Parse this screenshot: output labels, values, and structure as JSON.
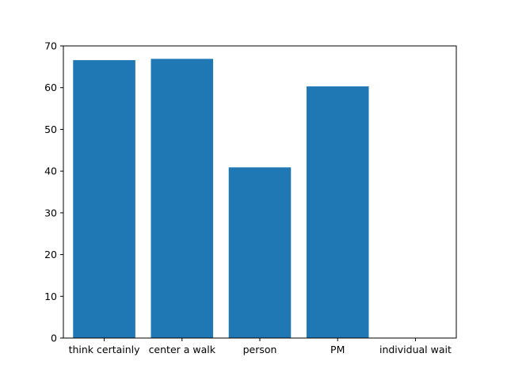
{
  "chart_data": {
    "type": "bar",
    "title": "",
    "xlabel": "",
    "ylabel": "",
    "categories": [
      "think certainly",
      "center a walk",
      "person",
      "PM",
      "individual wait"
    ],
    "values": [
      66.6,
      66.9,
      40.9,
      60.3,
      0
    ],
    "ylim": [
      0,
      70
    ],
    "yticks": [
      0,
      10,
      20,
      30,
      40,
      50,
      60,
      70
    ],
    "bar_color": "#1f77b4",
    "grid": false,
    "legend": "none"
  }
}
